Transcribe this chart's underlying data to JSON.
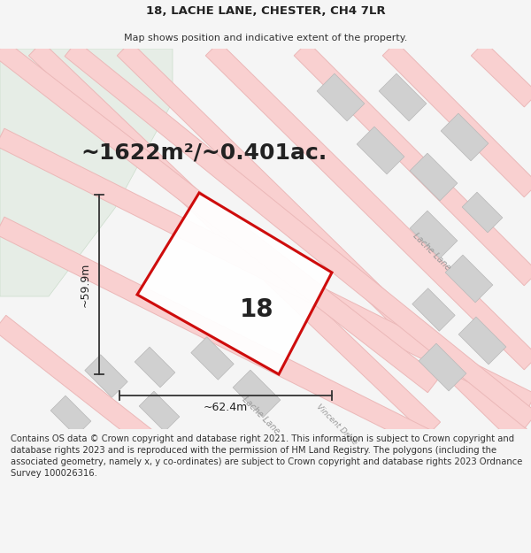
{
  "title_line1": "18, LACHE LANE, CHESTER, CH4 7LR",
  "title_line2": "Map shows position and indicative extent of the property.",
  "area_text": "~1622m²/~0.401ac.",
  "property_number": "18",
  "width_label": "~62.4m",
  "height_label": "~59.9m",
  "footer_text": "Contains OS data © Crown copyright and database right 2021. This information is subject to Crown copyright and database rights 2023 and is reproduced with the permission of HM Land Registry. The polygons (including the associated geometry, namely x, y co-ordinates) are subject to Crown copyright and database rights 2023 Ordnance Survey 100026316.",
  "bg_color": "#f5f5f5",
  "map_bg": "#ffffff",
  "green_area_color": "#e6ede6",
  "road_fill_color": "#f9d0d0",
  "road_edge_color": "#ebb8b8",
  "building_color": "#d0d0d0",
  "building_edge_color": "#b8b8b8",
  "property_color": "#cc0000",
  "dim_color": "#333333",
  "title_fontsize": 9.5,
  "subtitle_fontsize": 8.0,
  "area_fontsize": 18,
  "number_fontsize": 20,
  "dim_fontsize": 9,
  "footer_fontsize": 7.2,
  "road_label_color": "#999999",
  "road_label_size": 7.0
}
